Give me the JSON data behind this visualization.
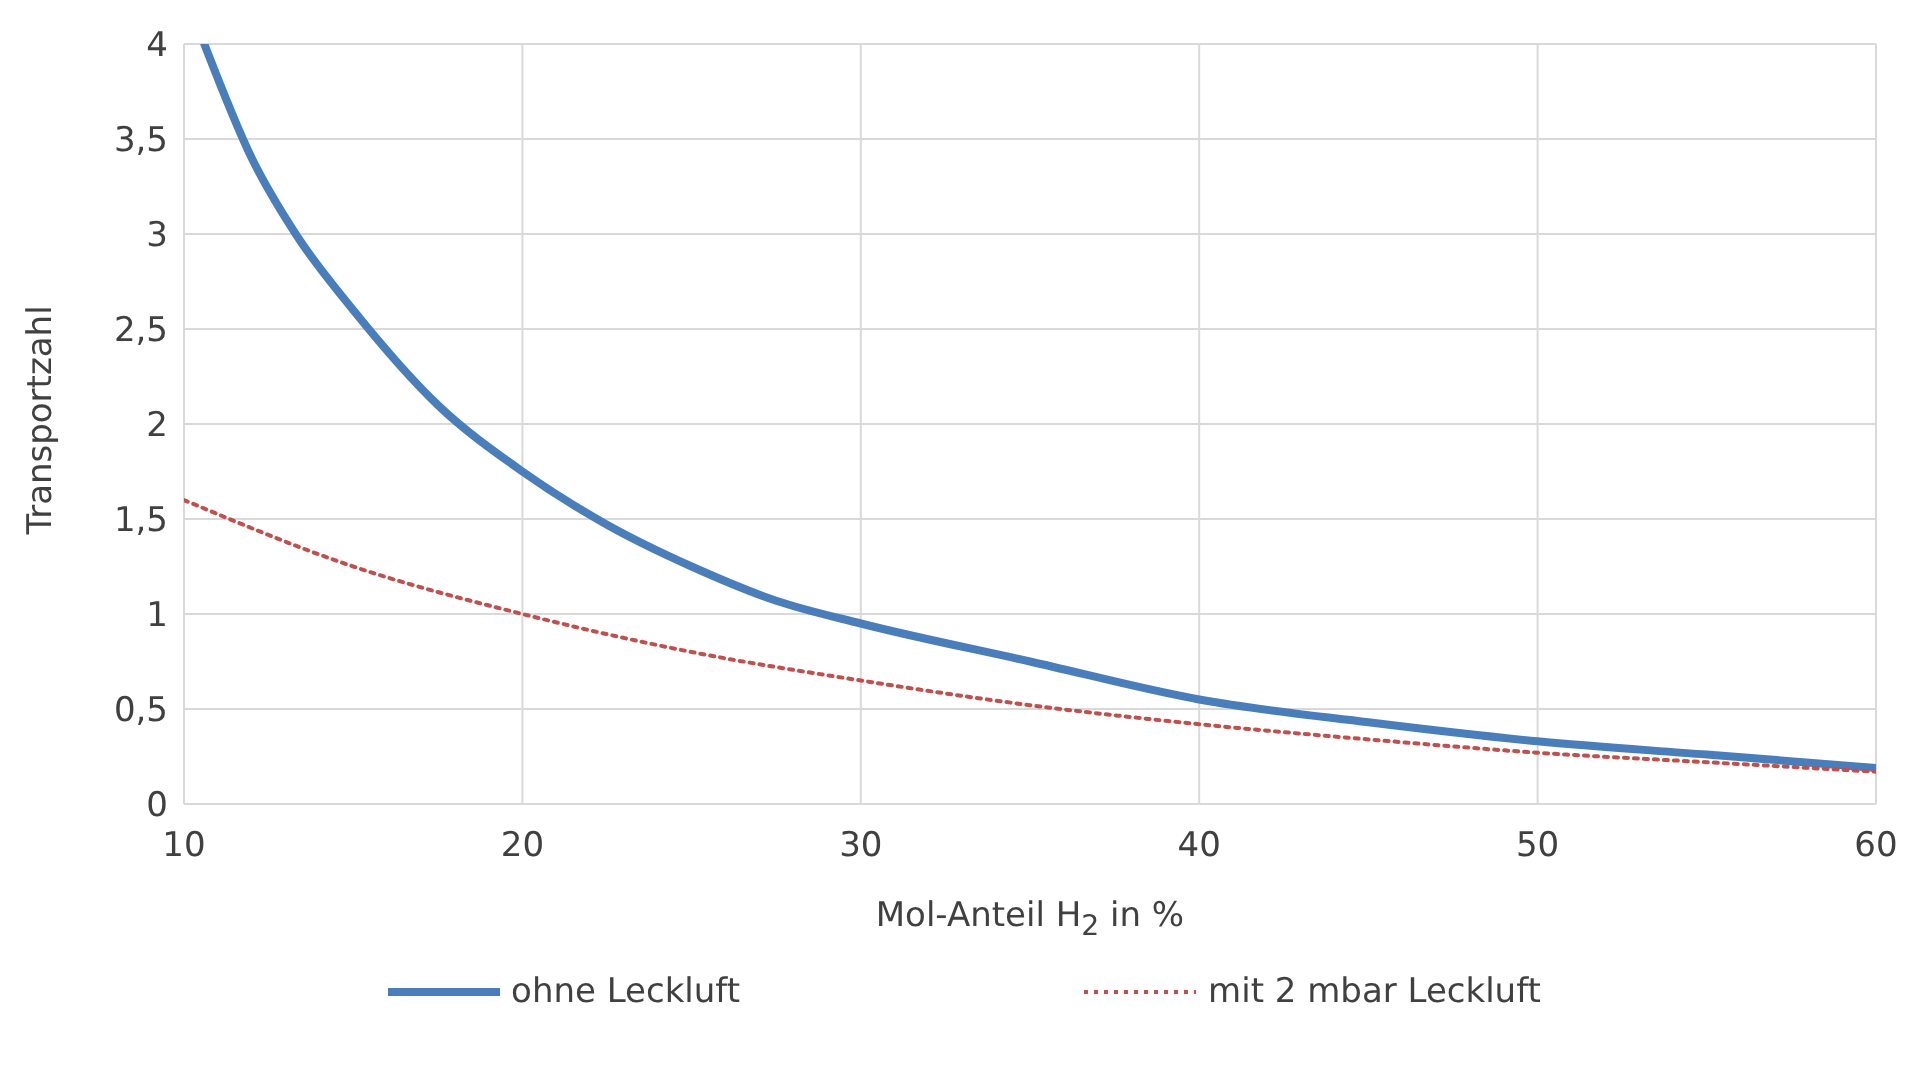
{
  "chart_data": {
    "type": "line",
    "xlabel": "Mol-Anteil H$_{2}$ in %",
    "ylabel": "Transportzahl",
    "xlim": [
      10,
      60
    ],
    "xticks": [
      10,
      20,
      30,
      40,
      50,
      60
    ],
    "ylim": [
      0,
      4
    ],
    "yticks": [
      0,
      {
        "value": 0.5,
        "label": "0,5"
      },
      1,
      {
        "value": 1.5,
        "label": "1,5"
      },
      2,
      {
        "value": 2.5,
        "label": "2,5"
      },
      3,
      {
        "value": 3.5,
        "label": "3,5"
      },
      4
    ],
    "grid": true,
    "legend": "bottom",
    "marker": "none",
    "series": [
      {
        "name": "ohne Leckluft",
        "color": "#4a7ebb",
        "line_style": "solid",
        "x": [
          10.6,
          12,
          13.3,
          15,
          17.5,
          20,
          22.5,
          25,
          27.5,
          30,
          35,
          40,
          45,
          50,
          55,
          60
        ],
        "values": [
          4.0,
          3.4,
          3.0,
          2.6,
          2.1,
          1.75,
          1.47,
          1.25,
          1.07,
          0.95,
          0.75,
          0.55,
          0.43,
          0.33,
          0.26,
          0.19
        ]
      },
      {
        "name": "mit 2 mbar Leckluft",
        "color": "#c0504d",
        "line_style": "dotted",
        "x": [
          10,
          15,
          20,
          25,
          30,
          35,
          40,
          45,
          50,
          55,
          60
        ],
        "values": [
          1.6,
          1.25,
          1.0,
          0.8,
          0.65,
          0.52,
          0.42,
          0.34,
          0.27,
          0.22,
          0.17
        ]
      }
    ]
  }
}
